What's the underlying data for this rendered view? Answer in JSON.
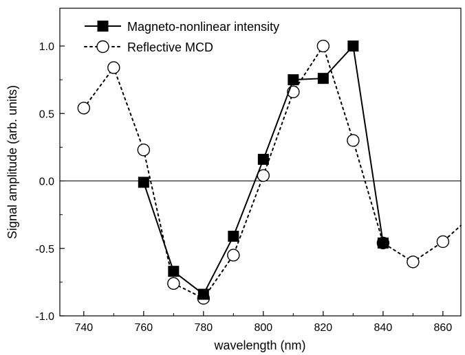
{
  "chart_data": {
    "type": "line",
    "xlabel": "wavelength (nm)",
    "ylabel": "Signal amplitude (arb. units)",
    "xlim": [
      732,
      866
    ],
    "ylim": [
      -1.0,
      1.28
    ],
    "x_ticks": [
      740,
      760,
      780,
      800,
      820,
      840,
      860
    ],
    "y_ticks": [
      -1.0,
      -0.5,
      0.0,
      0.5,
      1.0
    ],
    "x_tick_labels": [
      "740",
      "760",
      "780",
      "800",
      "820",
      "840",
      "860"
    ],
    "y_tick_labels": [
      "-1.0",
      "-0.5",
      "0.0",
      "0.5",
      "1.0"
    ],
    "zero_line": true,
    "grid": false,
    "legend_position": "top-left",
    "series": [
      {
        "name": "Magneto-nonlinear intensity",
        "marker": "filled-square",
        "line_style": "solid",
        "color": "#000000",
        "x": [
          760,
          770,
          780,
          790,
          800,
          810,
          820,
          830,
          840
        ],
        "y": [
          -0.01,
          -0.67,
          -0.84,
          -0.41,
          0.16,
          0.75,
          0.76,
          1.0,
          -0.46
        ]
      },
      {
        "name": "Reflective MCD",
        "marker": "open-circle",
        "line_style": "dotted",
        "color": "#000000",
        "x": [
          740,
          750,
          760,
          770,
          780,
          790,
          800,
          810,
          820,
          830,
          840,
          850,
          860,
          866
        ],
        "y": [
          0.54,
          0.84,
          0.23,
          -0.76,
          -0.87,
          -0.55,
          0.04,
          0.66,
          1.0,
          0.3,
          -0.46,
          -0.6,
          -0.45,
          -0.33
        ]
      }
    ]
  }
}
